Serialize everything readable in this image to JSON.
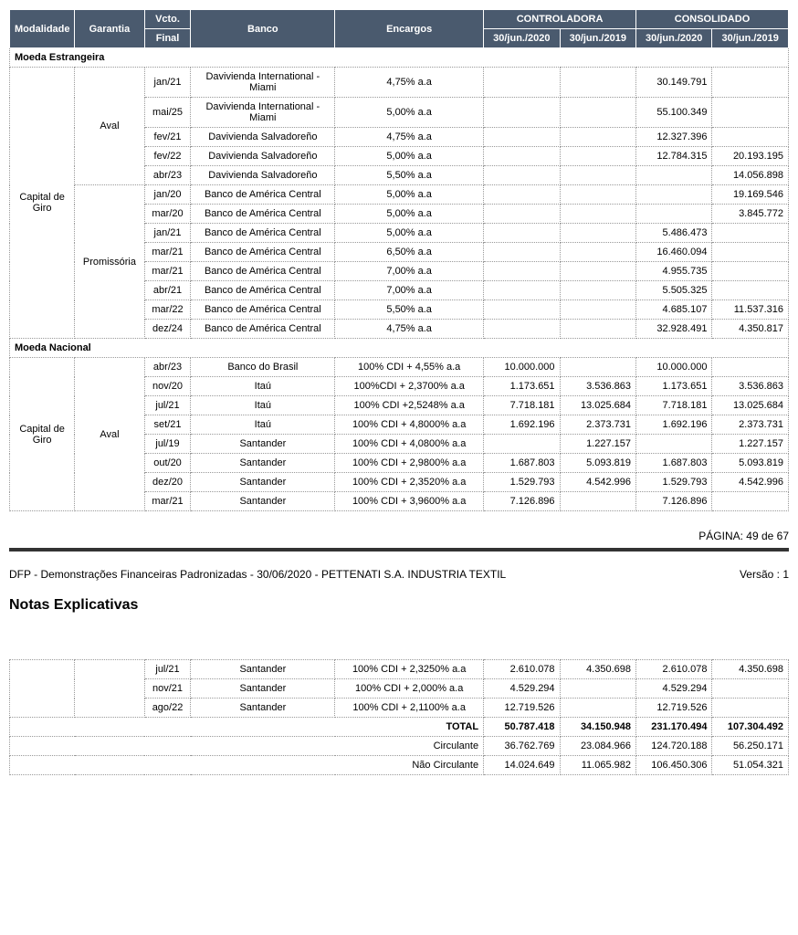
{
  "header": {
    "modalidade": "Modalidade",
    "garantia": "Garantia",
    "vcto": "Vcto.",
    "vcto_final": "Final",
    "banco": "Banco",
    "encargos": "Encargos",
    "controladora": "CONTROLADORA",
    "consolidado": "CONSOLIDADO",
    "d1": "30/jun./2020",
    "d2": "30/jun./2019",
    "d3": "30/jun./2020",
    "d4": "30/jun./2019"
  },
  "colors": {
    "header_bg": "#4a5a6e",
    "header_fg": "#ffffff",
    "border": "#999999"
  },
  "sections": [
    {
      "title": "Moeda Estrangeira",
      "groups": [
        {
          "modalidade": "Capital de Giro",
          "subgroups": [
            {
              "garantia": "Aval",
              "rows": [
                {
                  "vcto": "jan/21",
                  "banco": "Davivienda International -Miami",
                  "encargos": "4,75% a.a",
                  "c1": "",
                  "c2": "",
                  "c3": "30.149.791",
                  "c4": ""
                },
                {
                  "vcto": "mai/25",
                  "banco": "Davivienda International -Miami",
                  "encargos": "5,00% a.a",
                  "c1": "",
                  "c2": "",
                  "c3": "55.100.349",
                  "c4": ""
                },
                {
                  "vcto": "fev/21",
                  "banco": "Davivienda Salvadoreño",
                  "encargos": "4,75% a.a",
                  "c1": "",
                  "c2": "",
                  "c3": "12.327.396",
                  "c4": ""
                },
                {
                  "vcto": "fev/22",
                  "banco": "Davivienda Salvadoreño",
                  "encargos": "5,00% a.a",
                  "c1": "",
                  "c2": "",
                  "c3": "12.784.315",
                  "c4": "20.193.195"
                },
                {
                  "vcto": "abr/23",
                  "banco": "Davivienda Salvadoreño",
                  "encargos": "5,50% a.a",
                  "c1": "",
                  "c2": "",
                  "c3": "",
                  "c4": "14.056.898"
                }
              ]
            },
            {
              "garantia": "Promissória",
              "rows": [
                {
                  "vcto": "jan/20",
                  "banco": "Banco de América Central",
                  "encargos": "5,00% a.a",
                  "c1": "",
                  "c2": "",
                  "c3": "",
                  "c4": "19.169.546"
                },
                {
                  "vcto": "mar/20",
                  "banco": "Banco de América Central",
                  "encargos": "5,00% a.a",
                  "c1": "",
                  "c2": "",
                  "c3": "",
                  "c4": "3.845.772"
                },
                {
                  "vcto": "jan/21",
                  "banco": "Banco de América Central",
                  "encargos": "5,00% a.a",
                  "c1": "",
                  "c2": "",
                  "c3": "5.486.473",
                  "c4": ""
                },
                {
                  "vcto": "mar/21",
                  "banco": "Banco de América Central",
                  "encargos": "6,50% a.a",
                  "c1": "",
                  "c2": "",
                  "c3": "16.460.094",
                  "c4": ""
                },
                {
                  "vcto": "mar/21",
                  "banco": "Banco de América Central",
                  "encargos": "7,00% a.a",
                  "c1": "",
                  "c2": "",
                  "c3": "4.955.735",
                  "c4": ""
                },
                {
                  "vcto": "abr/21",
                  "banco": "Banco de América Central",
                  "encargos": "7,00% a.a",
                  "c1": "",
                  "c2": "",
                  "c3": "5.505.325",
                  "c4": ""
                },
                {
                  "vcto": "mar/22",
                  "banco": "Banco de América Central",
                  "encargos": "5,50% a.a",
                  "c1": "",
                  "c2": "",
                  "c3": "4.685.107",
                  "c4": "11.537.316"
                },
                {
                  "vcto": "dez/24",
                  "banco": "Banco de América Central",
                  "encargos": "4,75% a.a",
                  "c1": "",
                  "c2": "",
                  "c3": "32.928.491",
                  "c4": "4.350.817"
                }
              ]
            }
          ]
        }
      ]
    },
    {
      "title": "Moeda Nacional",
      "groups": [
        {
          "modalidade": "Capital de Giro",
          "subgroups": [
            {
              "garantia": "Aval",
              "rows": [
                {
                  "vcto": "abr/23",
                  "banco": "Banco do Brasil",
                  "encargos": "100% CDI + 4,55% a.a",
                  "c1": "10.000.000",
                  "c2": "",
                  "c3": "10.000.000",
                  "c4": ""
                },
                {
                  "vcto": "nov/20",
                  "banco": "Itaú",
                  "encargos": "100%CDI + 2,3700% a.a",
                  "c1": "1.173.651",
                  "c2": "3.536.863",
                  "c3": "1.173.651",
                  "c4": "3.536.863"
                },
                {
                  "vcto": "jul/21",
                  "banco": "Itaú",
                  "encargos": "100% CDI +2,5248% a.a",
                  "c1": "7.718.181",
                  "c2": "13.025.684",
                  "c3": "7.718.181",
                  "c4": "13.025.684"
                },
                {
                  "vcto": "set/21",
                  "banco": "Itaú",
                  "encargos": "100% CDI + 4,8000% a.a",
                  "c1": "1.692.196",
                  "c2": "2.373.731",
                  "c3": "1.692.196",
                  "c4": "2.373.731"
                },
                {
                  "vcto": "jul/19",
                  "banco": "Santander",
                  "encargos": "100% CDI + 4,0800% a.a",
                  "c1": "",
                  "c2": "1.227.157",
                  "c3": "",
                  "c4": "1.227.157"
                },
                {
                  "vcto": "out/20",
                  "banco": "Santander",
                  "encargos": "100% CDI + 2,9800% a.a",
                  "c1": "1.687.803",
                  "c2": "5.093.819",
                  "c3": "1.687.803",
                  "c4": "5.093.819"
                },
                {
                  "vcto": "dez/20",
                  "banco": "Santander",
                  "encargos": "100% CDI + 2,3520% a.a",
                  "c1": "1.529.793",
                  "c2": "4.542.996",
                  "c3": "1.529.793",
                  "c4": "4.542.996"
                },
                {
                  "vcto": "mar/21",
                  "banco": "Santander",
                  "encargos": "100% CDI + 3,9600% a.a",
                  "c1": "7.126.896",
                  "c2": "",
                  "c3": "7.126.896",
                  "c4": ""
                }
              ]
            }
          ]
        }
      ]
    }
  ],
  "page_number": "PÁGINA: 49 de 67",
  "doc_title": "DFP - Demonstrações Financeiras Padronizadas - 30/06/2020 - PETTENATI S.A. INDUSTRIA TEXTIL",
  "doc_version": "Versão : 1",
  "notas_title": "Notas Explicativas",
  "continuation_rows": [
    {
      "vcto": "jul/21",
      "banco": "Santander",
      "encargos": "100% CDI + 2,3250% a.a",
      "c1": "2.610.078",
      "c2": "4.350.698",
      "c3": "2.610.078",
      "c4": "4.350.698"
    },
    {
      "vcto": "nov/21",
      "banco": "Santander",
      "encargos": "100% CDI + 2,000% a.a",
      "c1": "4.529.294",
      "c2": "",
      "c3": "4.529.294",
      "c4": ""
    },
    {
      "vcto": "ago/22",
      "banco": "Santander",
      "encargos": "100% CDI + 2,1100% a.a",
      "c1": "12.719.526",
      "c2": "",
      "c3": "12.719.526",
      "c4": ""
    }
  ],
  "totals": {
    "total_label": "TOTAL",
    "total": {
      "c1": "50.787.418",
      "c2": "34.150.948",
      "c3": "231.170.494",
      "c4": "107.304.492"
    },
    "circulante_label": "Circulante",
    "circulante": {
      "c1": "36.762.769",
      "c2": "23.084.966",
      "c3": "124.720.188",
      "c4": "56.250.171"
    },
    "nao_circulante_label": "Não Circulante",
    "nao_circulante": {
      "c1": "14.024.649",
      "c2": "11.065.982",
      "c3": "106.450.306",
      "c4": "51.054.321"
    }
  }
}
